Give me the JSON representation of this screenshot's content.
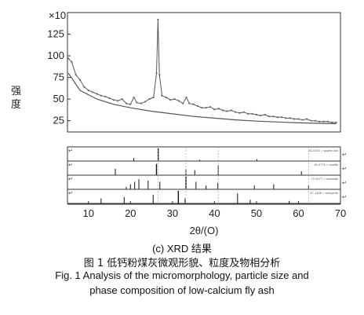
{
  "chart_data": {
    "type": "line",
    "multiplier_label": "×10",
    "ylabel": "强度",
    "xlabel": "2θ/(O)",
    "x_range": [
      5,
      70
    ],
    "y_range": [
      12,
      150
    ],
    "y_ticks": [
      25,
      50,
      75,
      100,
      125
    ],
    "x_ticks": [
      10,
      20,
      30,
      40,
      50,
      60,
      70
    ],
    "x_tick_labels": [
      "10",
      "20",
      "30",
      "40",
      "50",
      "60",
      "70"
    ],
    "series": [
      {
        "values": [
          [
            5.2,
            97
          ],
          [
            6,
            93
          ],
          [
            7,
            78
          ],
          [
            8,
            72
          ],
          [
            9,
            64
          ],
          [
            10,
            60
          ],
          [
            11,
            58
          ],
          [
            12,
            56
          ],
          [
            13,
            54
          ],
          [
            14,
            53
          ],
          [
            15,
            51
          ],
          [
            16,
            49
          ],
          [
            17,
            48
          ],
          [
            18,
            50
          ],
          [
            19,
            45
          ],
          [
            20,
            44
          ],
          [
            20.8,
            52
          ],
          [
            21.5,
            46
          ],
          [
            22.5,
            45
          ],
          [
            23.5,
            47
          ],
          [
            24.5,
            50
          ],
          [
            25.5,
            52
          ],
          [
            26.2,
            80
          ],
          [
            26.55,
            142
          ],
          [
            26.9,
            78
          ],
          [
            27.5,
            54
          ],
          [
            28.5,
            52
          ],
          [
            29.5,
            49
          ],
          [
            30.5,
            50
          ],
          [
            31.5,
            48
          ],
          [
            32.5,
            45
          ],
          [
            33.3,
            52
          ],
          [
            34,
            45
          ],
          [
            35,
            44
          ],
          [
            36,
            42
          ],
          [
            37,
            40
          ],
          [
            38,
            40
          ],
          [
            39,
            41
          ],
          [
            40,
            38
          ],
          [
            41,
            39
          ],
          [
            42,
            37
          ],
          [
            43,
            36
          ],
          [
            44,
            37
          ],
          [
            45,
            35
          ],
          [
            46,
            34
          ],
          [
            47,
            35
          ],
          [
            48,
            33
          ],
          [
            49,
            33
          ],
          [
            50,
            32
          ],
          [
            51,
            31
          ],
          [
            52,
            32
          ],
          [
            53,
            30
          ],
          [
            54,
            30
          ],
          [
            55,
            29
          ],
          [
            56,
            29
          ],
          [
            57,
            28
          ],
          [
            58,
            28
          ],
          [
            59,
            27
          ],
          [
            60,
            27
          ],
          [
            61,
            26
          ],
          [
            62,
            27
          ],
          [
            63,
            25
          ],
          [
            64,
            25
          ],
          [
            65,
            24
          ],
          [
            66,
            24
          ],
          [
            67,
            24
          ],
          [
            68,
            23
          ],
          [
            69,
            23
          ]
        ]
      },
      {
        "values": [
          [
            5.2,
            80
          ],
          [
            8,
            60
          ],
          [
            12,
            50
          ],
          [
            16,
            44
          ],
          [
            20,
            40
          ],
          [
            25,
            36
          ],
          [
            30,
            33
          ],
          [
            35,
            30
          ],
          [
            40,
            28
          ],
          [
            45,
            26
          ],
          [
            50,
            24.5
          ],
          [
            55,
            23.5
          ],
          [
            60,
            22.5
          ],
          [
            65,
            22
          ],
          [
            69,
            21.5
          ]
        ]
      }
    ],
    "reference_panels": [
      {
        "label": "33-0161 > quartz-low",
        "lines": [
          [
            26.6,
            1.0
          ],
          [
            20.8,
            0.25
          ],
          [
            50.1,
            0.15
          ],
          [
            36.5,
            0.1
          ]
        ]
      },
      {
        "label": "15-0776 > mullite",
        "lines": [
          [
            26.2,
            0.9
          ],
          [
            40.9,
            0.8
          ],
          [
            16.4,
            0.5
          ],
          [
            33.2,
            0.5
          ],
          [
            35.3,
            0.4
          ],
          [
            60.7,
            0.3
          ]
        ]
      },
      {
        "label": "72-0077 > hematite",
        "lines": [
          [
            19.0,
            0.2
          ],
          [
            20.0,
            0.4
          ],
          [
            21.0,
            0.6
          ],
          [
            22.0,
            0.8
          ],
          [
            24.2,
            0.7
          ],
          [
            27.0,
            0.6
          ],
          [
            33.2,
            1.0
          ],
          [
            35.6,
            0.6
          ],
          [
            38.0,
            0.3
          ],
          [
            40.8,
            0.5
          ],
          [
            49.5,
            0.3
          ],
          [
            54.1,
            0.4
          ],
          [
            62.4,
            0.3
          ]
        ]
      },
      {
        "label": "37-1496 > anhydrite",
        "lines": [
          [
            13.0,
            0.4
          ],
          [
            18.5,
            0.5
          ],
          [
            25.4,
            0.7
          ],
          [
            31.4,
            1.0
          ],
          [
            33.0,
            0.4
          ],
          [
            45.5,
            0.8
          ],
          [
            48.5,
            0.3
          ],
          [
            57.8,
            0.2
          ]
        ]
      }
    ]
  },
  "captions": {
    "sub": "(c) XRD 结果",
    "cn": "图 1 低钙粉煤灰微观形貌、粒度及物相分析",
    "en1": "Fig. 1 Analysis of the micromorphology, particle size and",
    "en2": "phase composition of low-calcium fly ash"
  }
}
